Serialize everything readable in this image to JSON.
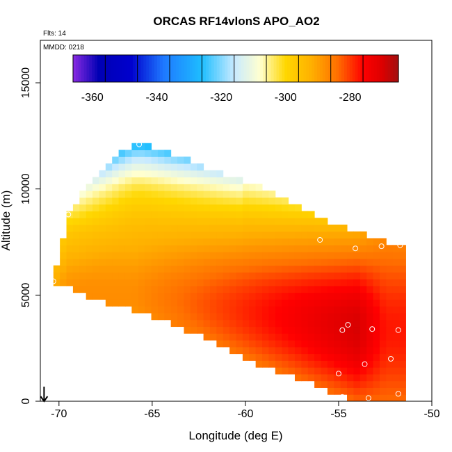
{
  "chart_data": {
    "type": "heatmap",
    "title": "ORCAS RF14vlonS APO_AO2",
    "flights_label": "Flts: 14",
    "date_label": "MMDD: 0218",
    "xlabel": "Longitude (deg E)",
    "ylabel": "Altitude (m)",
    "xlim": [
      -71,
      -50
    ],
    "ylim": [
      0,
      17000
    ],
    "x_ticks": [
      -70,
      -65,
      -60,
      -55,
      -50
    ],
    "x_tick_labels": [
      "-70",
      "-65",
      "-60",
      "-55",
      "-50"
    ],
    "y_ticks": [
      0,
      5000,
      10000,
      15000
    ],
    "y_tick_labels": [
      "0",
      "5000",
      "10000",
      "15000"
    ],
    "colorbar": {
      "min": -366,
      "max": -265,
      "ticks": [
        -360,
        -340,
        -320,
        -300,
        -280
      ],
      "tick_labels": [
        "-360",
        "-340",
        "-320",
        "-300",
        "-280"
      ],
      "divisions": [
        -366,
        -356,
        -346,
        -336,
        -326,
        -316,
        -306,
        -296,
        -286,
        -276,
        -265
      ],
      "stops": [
        {
          "value": -366,
          "color": "#8a2be2"
        },
        {
          "value": -358,
          "color": "#0000b4"
        },
        {
          "value": -348,
          "color": "#0000cd"
        },
        {
          "value": -338,
          "color": "#1e78ff"
        },
        {
          "value": -326,
          "color": "#1ebeff"
        },
        {
          "value": -316,
          "color": "#c8eaff"
        },
        {
          "value": -308,
          "color": "#ffffd0"
        },
        {
          "value": -300,
          "color": "#ffd700"
        },
        {
          "value": -292,
          "color": "#ffb000"
        },
        {
          "value": -284,
          "color": "#ff7000"
        },
        {
          "value": -276,
          "color": "#ff0000"
        },
        {
          "value": -270,
          "color": "#dc0000"
        },
        {
          "value": -265,
          "color": "#a01010"
        }
      ]
    },
    "profile_region": {
      "top_boundary": [
        [
          -70.3,
          5600
        ],
        [
          -69.5,
          9000
        ],
        [
          -68.0,
          10500
        ],
        [
          -66.5,
          11800
        ],
        [
          -65.8,
          12200
        ],
        [
          -65.0,
          12000
        ],
        [
          -62.0,
          11000
        ],
        [
          -59.5,
          10200
        ],
        [
          -55.0,
          8300
        ],
        [
          -52.0,
          7400
        ],
        [
          -51.7,
          7300
        ]
      ],
      "bottom_boundary": [
        [
          -70.3,
          5600
        ],
        [
          -68.0,
          4800
        ],
        [
          -65.0,
          4000
        ],
        [
          -62.0,
          2900
        ],
        [
          -59.0,
          1600
        ],
        [
          -56.0,
          700
        ],
        [
          -55.0,
          200
        ],
        [
          -52.5,
          0
        ],
        [
          -51.7,
          0
        ]
      ]
    },
    "field_model": {
      "base": -296,
      "upper_layer": [
        {
          "z": 8000,
          "value": -300
        },
        {
          "z": 10000,
          "value": -310
        },
        {
          "z": 11500,
          "value": -322
        },
        {
          "z": 12200,
          "value": -328
        }
      ],
      "low_plume_center_alt": 3500,
      "low_plume_value": -272,
      "east_core_value": -276
    },
    "flight_points": [
      {
        "lon": -65.7,
        "alt": 12100
      },
      {
        "lon": -69.5,
        "alt": 8800
      },
      {
        "lon": -70.3,
        "alt": 5650
      },
      {
        "lon": -56.0,
        "alt": 7600
      },
      {
        "lon": -54.1,
        "alt": 7200
      },
      {
        "lon": -52.7,
        "alt": 7300
      },
      {
        "lon": -51.7,
        "alt": 7350
      },
      {
        "lon": -54.5,
        "alt": 3600
      },
      {
        "lon": -54.8,
        "alt": 3350
      },
      {
        "lon": -53.2,
        "alt": 3400
      },
      {
        "lon": -51.8,
        "alt": 3350
      },
      {
        "lon": -53.6,
        "alt": 1750
      },
      {
        "lon": -52.2,
        "alt": 2000
      },
      {
        "lon": -55.0,
        "alt": 1300
      },
      {
        "lon": -51.8,
        "alt": 350
      },
      {
        "lon": -54.8,
        "alt": 200
      },
      {
        "lon": -53.4,
        "alt": 150
      }
    ],
    "arrow_marker": {
      "lon": -70.8,
      "alt": 0,
      "direction": "down"
    }
  }
}
